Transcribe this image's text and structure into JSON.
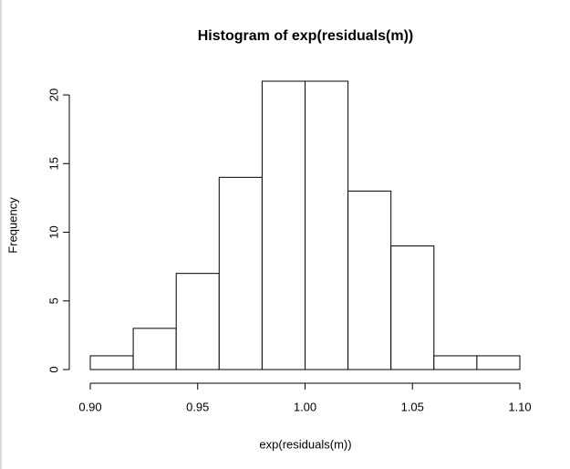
{
  "chart_data": {
    "type": "histogram",
    "title": "Histogram of exp(residuals(m))",
    "x_label": "exp(residuals(m))",
    "y_label": "Frequency",
    "bins": [
      0.9,
      0.92,
      0.94,
      0.96,
      0.98,
      1.0,
      1.02,
      1.04,
      1.06,
      1.08,
      1.1
    ],
    "values": [
      1,
      3,
      7,
      14,
      21,
      21,
      13,
      9,
      1,
      1
    ],
    "color": "#ffffff",
    "xlim": [
      0.9,
      1.1
    ],
    "xticks": [
      {
        "value": 0.9,
        "label": "0.90"
      },
      {
        "value": 0.95,
        "label": "0.95"
      },
      {
        "value": 1.0,
        "label": "1.00"
      },
      {
        "value": 1.05,
        "label": "1.05"
      },
      {
        "value": 1.1,
        "label": "1.10"
      }
    ],
    "ylim": [
      0,
      21
    ],
    "yticks": [
      0,
      5,
      10,
      15,
      20
    ]
  }
}
